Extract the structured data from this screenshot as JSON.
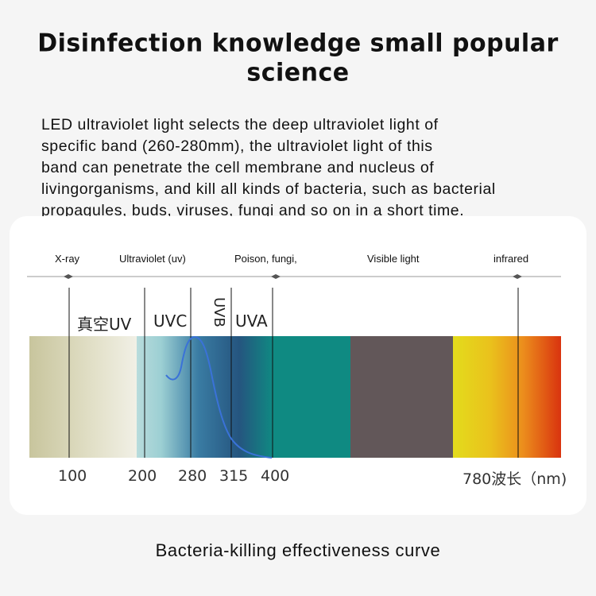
{
  "title": "Disinfection knowledge small popular science",
  "intro_lines": [
    "LED ultraviolet light selects the deep ultraviolet light of",
    "specific band (260-280mm), the ultraviolet light of this",
    "band can penetrate the cell membrane and nucleus of",
    "livingorganisms, and kill all kinds of bacteria, such as bacterial",
    "propagules, buds, viruses, fungi and so on in a short time."
  ],
  "band_labels": {
    "xray": "X-ray",
    "ultraviolet": "Ultraviolet (uv)",
    "poison": "Poison, fungi,",
    "visible": "Visible light",
    "infrared": "infrared"
  },
  "uv_types": {
    "vacuum_uv": "真空UV",
    "uvc": "UVC",
    "uvb": "UVB",
    "uva": "UVA"
  },
  "tick_labels": {
    "t100": "100",
    "t200": "200",
    "t280": "280",
    "t315": "315",
    "t400": "400",
    "t780": "780波长（nm)"
  },
  "caption": "Bacteria-killing effectiveness curve",
  "colors": {
    "vacuum_band": "#c9c6a0",
    "uv_start": "#aed8d8",
    "uv_mid": "#2d6fa0",
    "uva_teal": "#0f8a82",
    "visible_grey": "#625759",
    "infrared_start": "#e4d81a",
    "infrared_end": "#dd3b12",
    "curve": "#3a72d8"
  }
}
